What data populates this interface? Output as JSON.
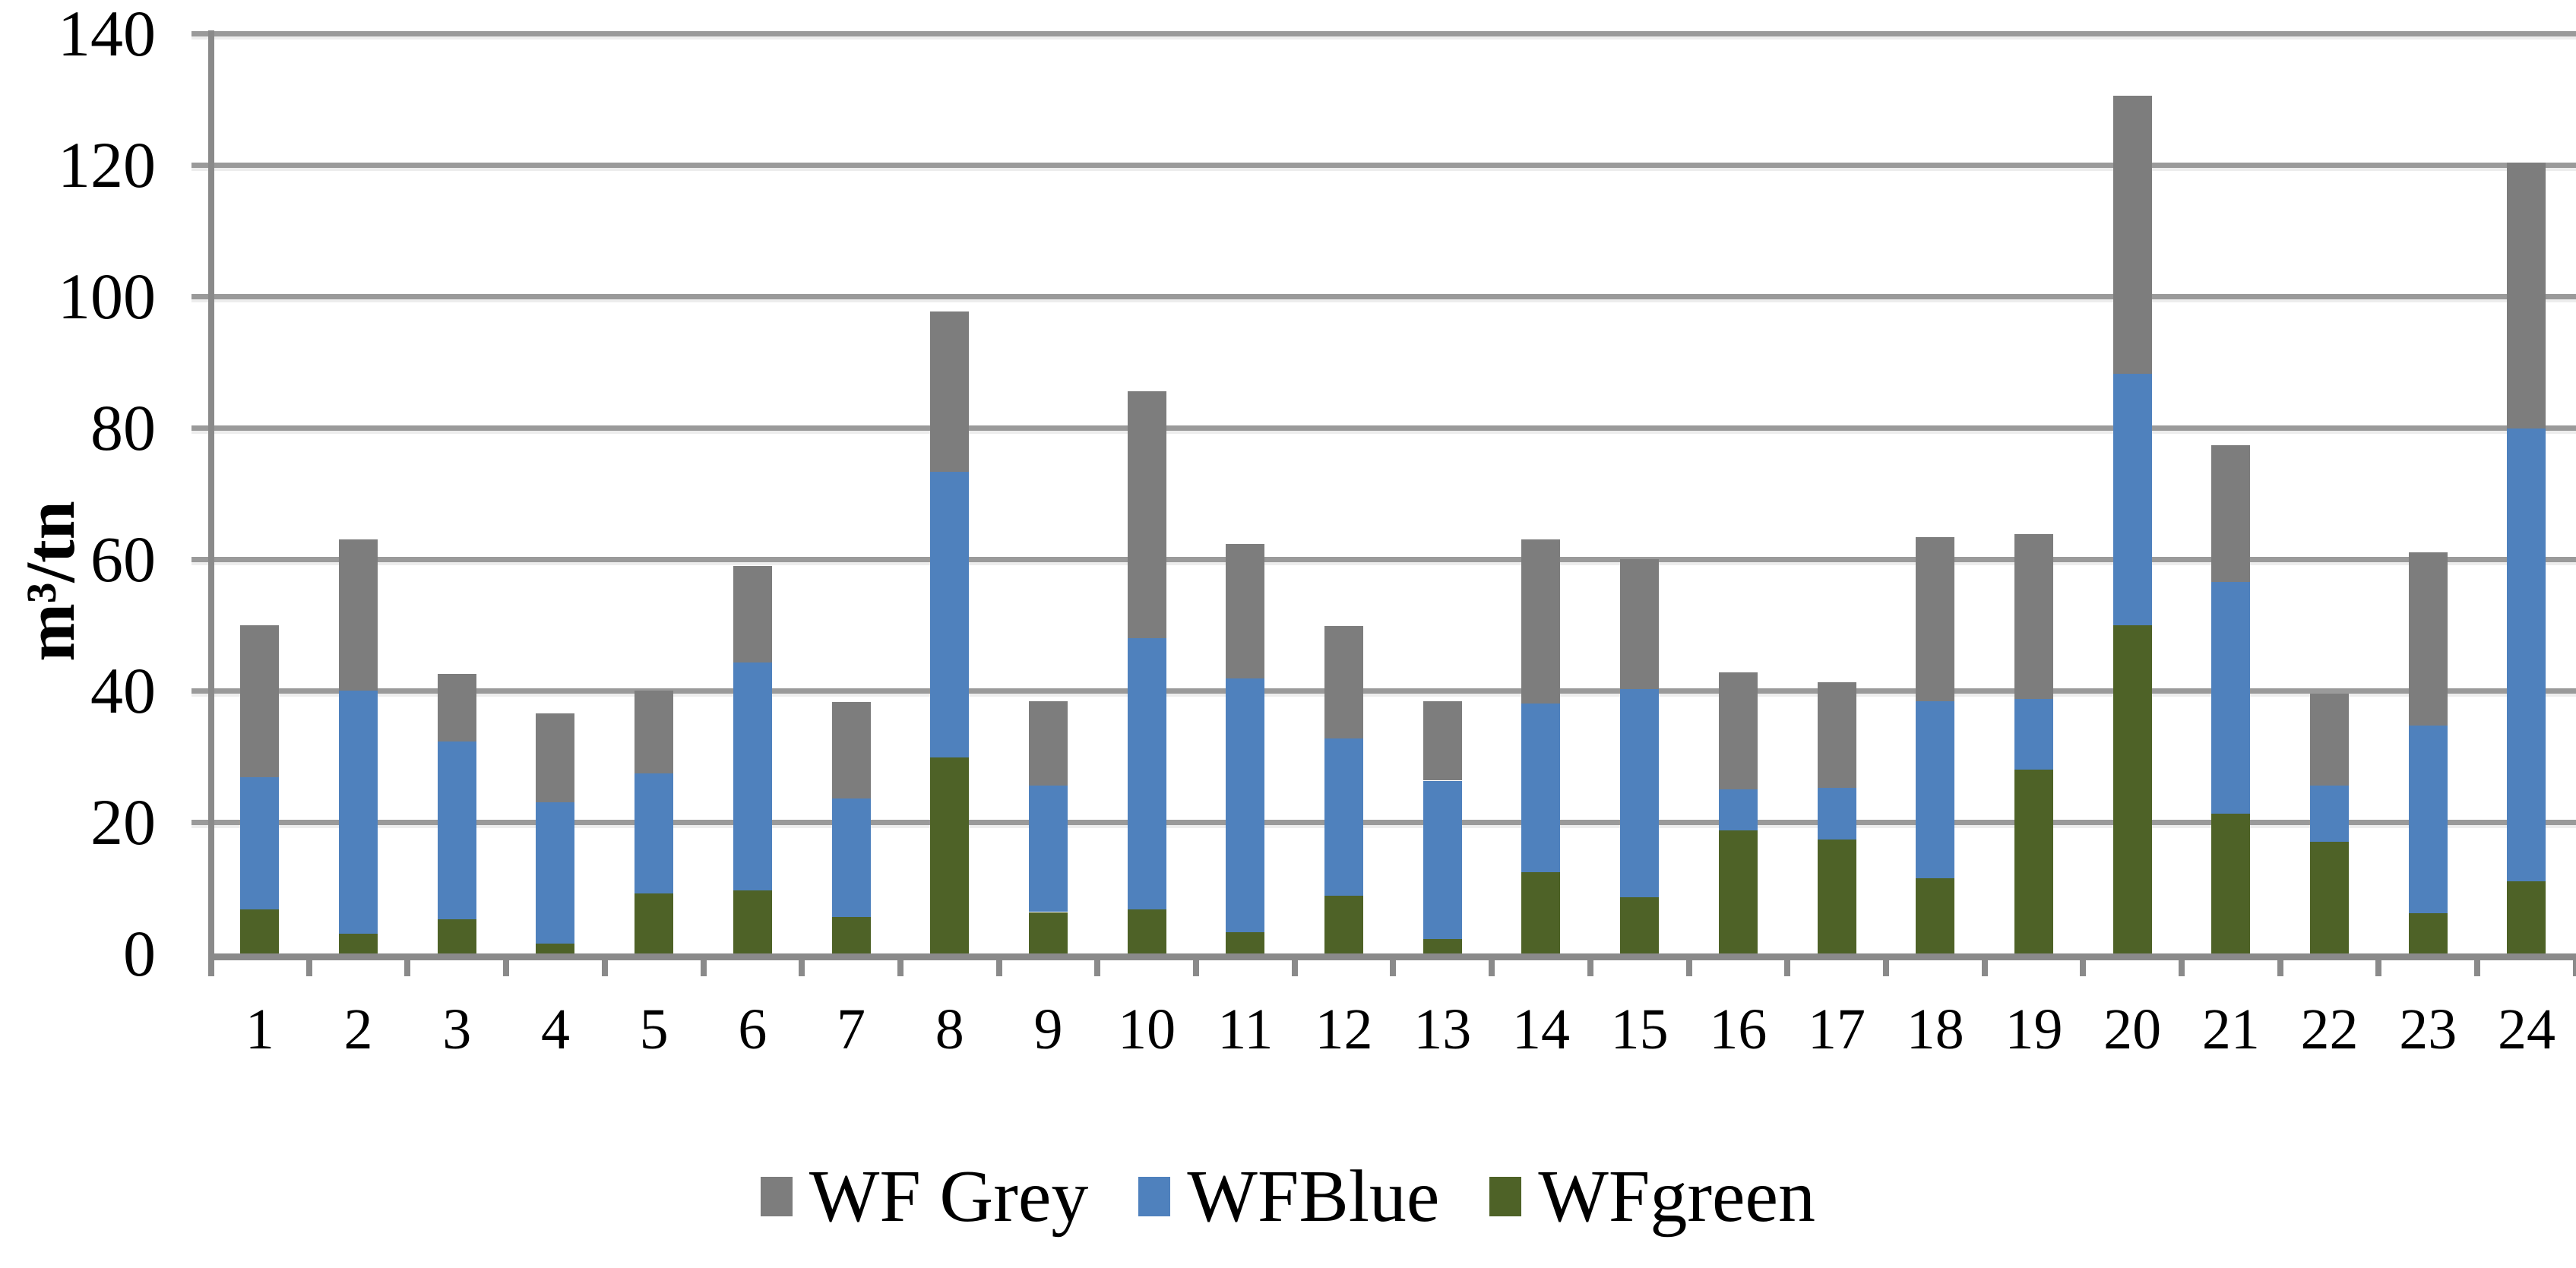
{
  "figure": {
    "background": "#FFFFFF",
    "gridline_color": "#9A9A9A",
    "axis_color": "#8A8A8A"
  },
  "y_axis": {
    "title": "m³/tn",
    "tick_labels": [
      "0",
      "20",
      "40",
      "60",
      "80",
      "100",
      "120",
      "140"
    ],
    "min": 0,
    "max": 140,
    "step": 20
  },
  "x_axis": {
    "labels": [
      "1",
      "2",
      "3",
      "4",
      "5",
      "6",
      "7",
      "8",
      "9",
      "10",
      "11",
      "12",
      "13",
      "14",
      "15",
      "16",
      "17",
      "18",
      "19",
      "20",
      "21",
      "22",
      "23",
      "24"
    ]
  },
  "legend": {
    "items": [
      {
        "label": "WF Grey",
        "color": "#7D7D7D"
      },
      {
        "label": "WFBlue",
        "color": "#4F81BD"
      },
      {
        "label": "WFgreen",
        "color": "#4E6227"
      }
    ]
  },
  "chart_data": {
    "type": "bar",
    "stacked": true,
    "stack_order": "bottom-to-top",
    "title": "",
    "xlabel": "",
    "ylabel": "m³/tn",
    "ylim": [
      0,
      140
    ],
    "ytick_step": 20,
    "grid": "horizontal",
    "legend_position": "bottom",
    "categories": [
      "1",
      "2",
      "3",
      "4",
      "5",
      "6",
      "7",
      "8",
      "9",
      "10",
      "11",
      "12",
      "13",
      "14",
      "15",
      "16",
      "17",
      "18",
      "19",
      "20",
      "21",
      "22",
      "23",
      "24"
    ],
    "series": [
      {
        "name": "WFgreen",
        "color": "#4E6227",
        "values": [
          6.7,
          3.0,
          5.2,
          1.5,
          9.1,
          9.6,
          5.6,
          29.8,
          6.3,
          6.7,
          3.2,
          8.8,
          2.2,
          12.4,
          8.5,
          18.7,
          17.3,
          11.4,
          28.0,
          49.9,
          21.3,
          17.0,
          6.1,
          11.0
        ]
      },
      {
        "name": "WFBlue",
        "color": "#4F81BD",
        "values": [
          20.1,
          37.0,
          27.1,
          21.5,
          18.3,
          34.7,
          18.0,
          43.5,
          19.3,
          41.3,
          38.6,
          23.9,
          24.1,
          25.6,
          31.7,
          6.3,
          7.9,
          27.0,
          10.7,
          38.3,
          35.2,
          8.5,
          28.6,
          68.9
        ]
      },
      {
        "name": "WF Grey",
        "color": "#7D7D7D",
        "values": [
          23.2,
          23.0,
          10.2,
          13.5,
          12.6,
          14.7,
          14.7,
          24.4,
          12.8,
          37.5,
          20.5,
          17.1,
          12.1,
          25.0,
          19.8,
          17.8,
          16.1,
          24.9,
          25.1,
          42.3,
          20.8,
          14.0,
          26.3,
          40.4
        ]
      }
    ],
    "totals": [
      50.0,
      63.0,
      42.5,
      36.5,
      40.0,
      59.0,
      38.3,
      97.7,
      38.4,
      85.5,
      62.3,
      49.8,
      38.4,
      63.0,
      60.0,
      42.8,
      41.3,
      63.3,
      63.8,
      130.5,
      77.3,
      39.5,
      61.0,
      120.3
    ]
  }
}
